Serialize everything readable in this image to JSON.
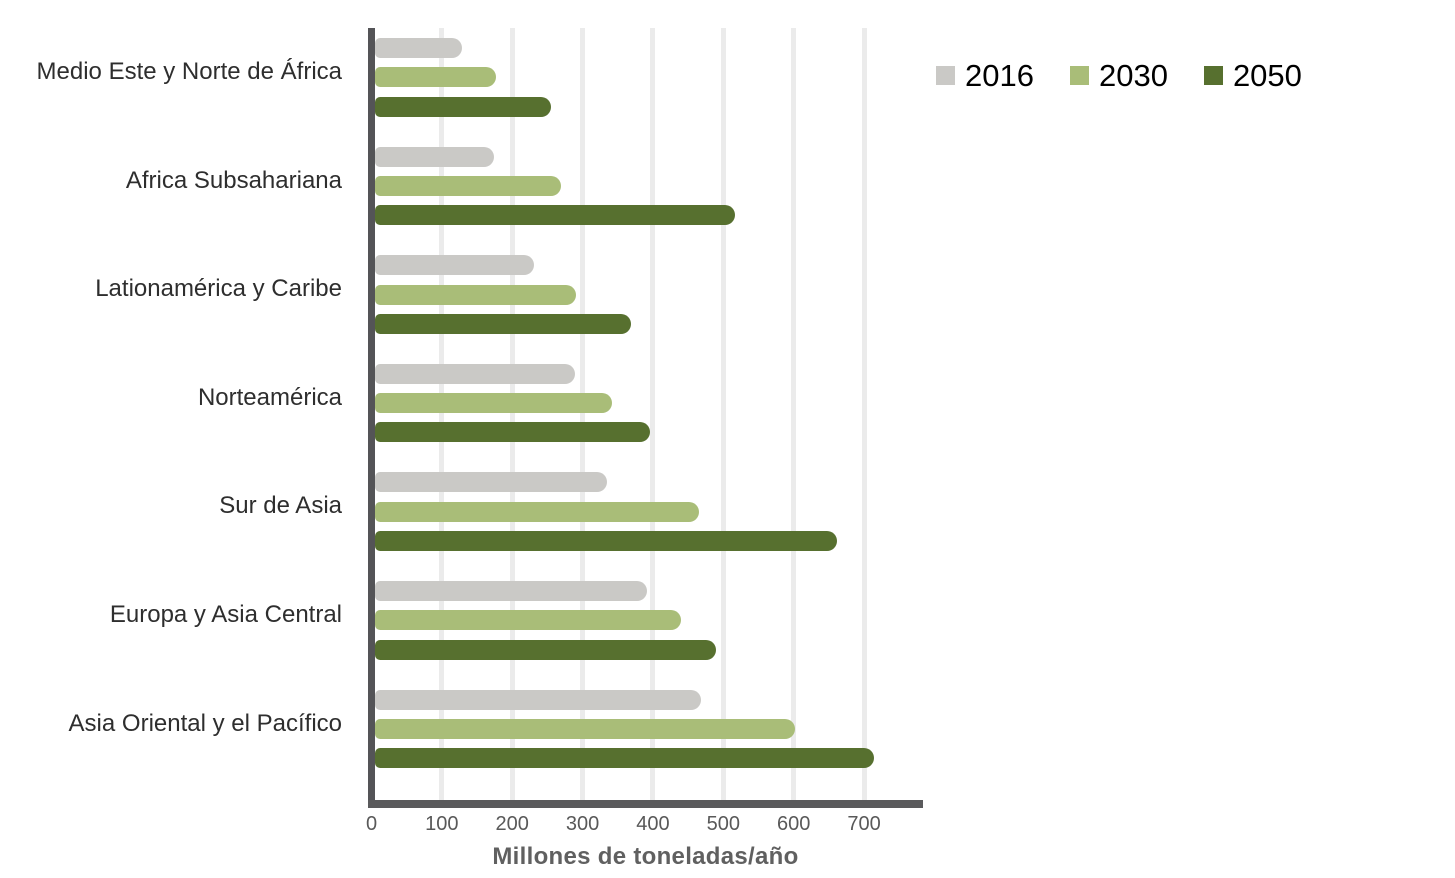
{
  "chart_data": {
    "type": "bar",
    "orientation": "horizontal",
    "categories": [
      "Medio Este y Norte de África",
      "Africa Subsahariana",
      "Lationamérica y Caribe",
      "Norteamérica",
      "Sur de Asia",
      "Europa y Asia Central",
      "Asia Oriental y el Pacífico"
    ],
    "series": [
      {
        "name": "2016",
        "color": "#cac9c6",
        "values": [
          129,
          174,
          231,
          289,
          334,
          392,
          468
        ]
      },
      {
        "name": "2030",
        "color": "#a9bd78",
        "values": [
          177,
          269,
          290,
          342,
          466,
          440,
          602
        ]
      },
      {
        "name": "2050",
        "color": "#57702f",
        "values": [
          255,
          516,
          369,
          396,
          661,
          490,
          714
        ]
      }
    ],
    "xlabel": "Millones de toneladas/año",
    "xlim": [
      0,
      785
    ],
    "xticks": [
      0,
      100,
      200,
      300,
      400,
      500,
      600,
      700
    ],
    "grid": true,
    "legend_position": "top-right",
    "colors": {
      "axis": "#58585a",
      "gridline": "#ebebeb",
      "tick_label": "#595959",
      "category_label": "#2e2e2e",
      "axis_title": "#606060",
      "legend_text": "#000000"
    }
  }
}
